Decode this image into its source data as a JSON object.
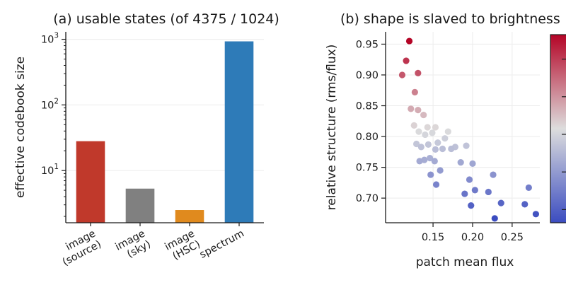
{
  "chart_data": [
    {
      "type": "bar",
      "title": "(a) usable states (of 4375 / 1024)",
      "xlabel": "",
      "ylabel": "effective codebook size",
      "yscale": "log",
      "ylim": [
        1.6,
        1300
      ],
      "yticks": [
        {
          "base": "10",
          "exp": "1",
          "value": 10
        },
        {
          "base": "10",
          "exp": "2",
          "value": 100
        },
        {
          "base": "10",
          "exp": "3",
          "value": 1000
        }
      ],
      "categories": [
        [
          "image",
          "(source)"
        ],
        [
          "image",
          "(sky)"
        ],
        [
          "image",
          "(HSC)"
        ],
        [
          "spectrum"
        ]
      ],
      "values": [
        28,
        5.3,
        2.5,
        930
      ],
      "colors": [
        "#c0392b",
        "#808080",
        "#e08a1e",
        "#2e7bb8"
      ],
      "grid": true
    },
    {
      "type": "scatter",
      "title": "(b) shape is slaved to brightness",
      "xlabel": "patch mean flux",
      "ylabel": "relative structure (rms/flux)",
      "xlim": [
        0.09,
        0.285
      ],
      "ylim": [
        0.66,
        0.97
      ],
      "xticks": [
        "0.15",
        "0.20",
        "0.25"
      ],
      "yticks": [
        "0.70",
        "0.75",
        "0.80",
        "0.85",
        "0.90",
        "0.95"
      ],
      "grid": true,
      "colormap": "coolwarm (red = high relative structure, blue = low)",
      "points": [
        [
          0.12,
          0.955
        ],
        [
          0.116,
          0.923
        ],
        [
          0.111,
          0.9
        ],
        [
          0.131,
          0.903
        ],
        [
          0.127,
          0.872
        ],
        [
          0.122,
          0.845
        ],
        [
          0.131,
          0.843
        ],
        [
          0.138,
          0.835
        ],
        [
          0.126,
          0.818
        ],
        [
          0.143,
          0.815
        ],
        [
          0.132,
          0.808
        ],
        [
          0.14,
          0.803
        ],
        [
          0.153,
          0.815
        ],
        [
          0.149,
          0.806
        ],
        [
          0.169,
          0.808
        ],
        [
          0.156,
          0.79
        ],
        [
          0.165,
          0.797
        ],
        [
          0.129,
          0.788
        ],
        [
          0.135,
          0.783
        ],
        [
          0.144,
          0.787
        ],
        [
          0.153,
          0.779
        ],
        [
          0.162,
          0.78
        ],
        [
          0.178,
          0.783
        ],
        [
          0.192,
          0.785
        ],
        [
          0.139,
          0.762
        ],
        [
          0.146,
          0.765
        ],
        [
          0.152,
          0.76
        ],
        [
          0.133,
          0.76
        ],
        [
          0.173,
          0.78
        ],
        [
          0.185,
          0.758
        ],
        [
          0.2,
          0.756
        ],
        [
          0.147,
          0.738
        ],
        [
          0.159,
          0.745
        ],
        [
          0.196,
          0.73
        ],
        [
          0.154,
          0.722
        ],
        [
          0.19,
          0.707
        ],
        [
          0.203,
          0.713
        ],
        [
          0.198,
          0.688
        ],
        [
          0.22,
          0.71
        ],
        [
          0.226,
          0.738
        ],
        [
          0.236,
          0.692
        ],
        [
          0.228,
          0.667
        ],
        [
          0.266,
          0.69
        ],
        [
          0.271,
          0.717
        ],
        [
          0.28,
          0.674
        ]
      ]
    }
  ]
}
